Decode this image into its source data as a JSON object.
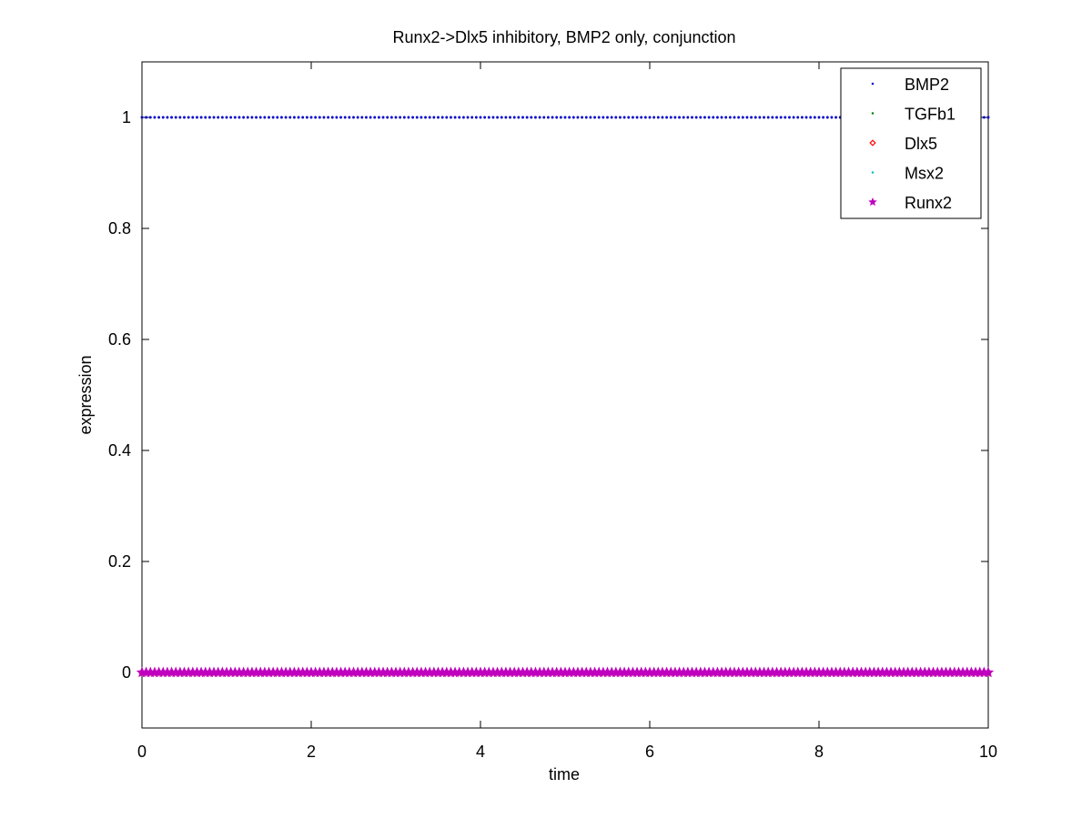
{
  "chart_data": {
    "type": "scatter",
    "title": "Runx2->Dlx5 inhibitory, BMP2 only, conjunction",
    "xlabel": "time",
    "ylabel": "expression",
    "xlim": [
      0,
      10
    ],
    "ylim": [
      -0.1,
      1.1
    ],
    "xticks": [
      0,
      2,
      4,
      6,
      8,
      10
    ],
    "xtick_labels": [
      "0",
      "2",
      "4",
      "6",
      "8",
      "10"
    ],
    "yticks": [
      0,
      0.2,
      0.4,
      0.6,
      0.8,
      1
    ],
    "ytick_labels": [
      "0",
      "0.2",
      "0.4",
      "0.6",
      "0.8",
      "1"
    ],
    "grid": false,
    "legend_position": "top-right",
    "x_start": 0,
    "x_end": 10,
    "x_step": 0.05,
    "series": [
      {
        "name": "BMP2",
        "constant_value": 1,
        "color": "#0000cc",
        "marker": "dot"
      },
      {
        "name": "TGFb1",
        "constant_value": 0,
        "color": "#008000",
        "marker": "dot"
      },
      {
        "name": "Dlx5",
        "constant_value": 0,
        "color": "#ff0000",
        "marker": "diamond"
      },
      {
        "name": "Msx2",
        "constant_value": 0,
        "color": "#00bfbf",
        "marker": "dot"
      },
      {
        "name": "Runx2",
        "constant_value": 0,
        "color": "#bf00bf",
        "marker": "star"
      }
    ]
  }
}
